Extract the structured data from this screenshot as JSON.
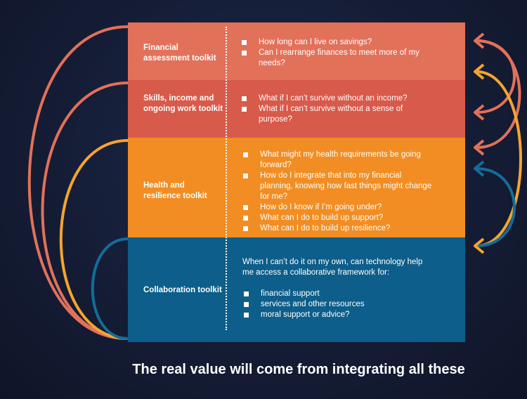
{
  "colors": {
    "financial": "#e2715a",
    "skills": "#d75a4a",
    "health": "#f18d22",
    "collaboration": "#0d5e8a",
    "arc_coral": "#e2715a",
    "arc_orange": "#f5a42f",
    "arc_blue": "#156c9a",
    "background": "#151d36"
  },
  "bands": [
    {
      "label": "Financial assessment toolkit",
      "questions": [
        "How long can I live on savings?",
        "Can I rearrange finances to meet more of my needs?"
      ]
    },
    {
      "label": "Skills, income and ongoing work toolkit",
      "questions": [
        "What if I can’t survive without an income?",
        "What if I can’t survive without a sense of purpose?"
      ]
    },
    {
      "label": "Health and resilience toolkit",
      "questions": [
        "What might my health requirements be going forward?",
        "How do I integrate that into my financial planning, knowing how fast things might change for me?",
        "How do I know if I’m going under?",
        "What can I do to build up support?",
        "What can I do to build up resilience?"
      ]
    },
    {
      "label": "Collaboration toolkit",
      "intro": "When I can’t do it on my own, can technology help me access a collaborative framework for:",
      "questions": [
        "financial support",
        "services and other resources",
        "moral support or advice?"
      ]
    }
  ],
  "footer": "The real value will come from integrating all these"
}
